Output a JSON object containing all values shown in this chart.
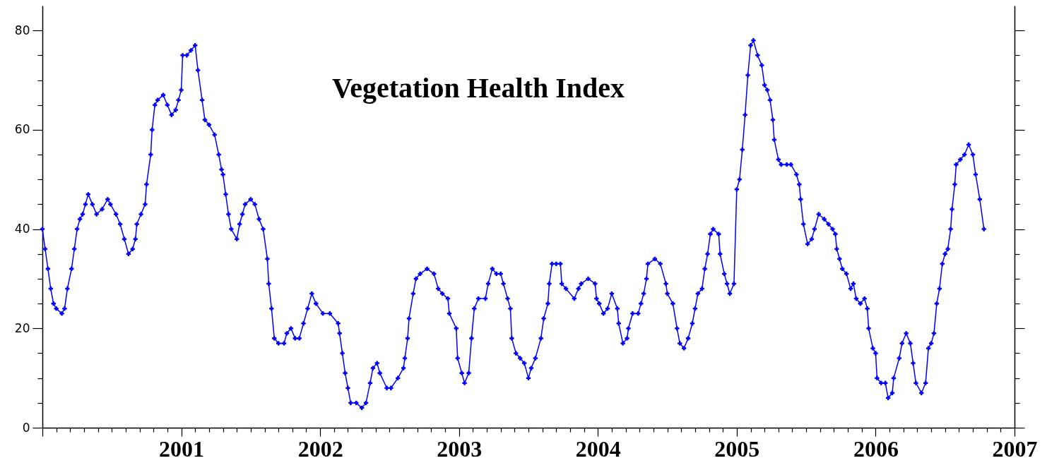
{
  "chart_data": {
    "type": "line",
    "title": "Vegetation Health Index",
    "x": [
      2000.0,
      2000.02,
      2000.04,
      2000.06,
      2000.08,
      2000.1,
      2000.14,
      2000.16,
      2000.18,
      2000.21,
      2000.23,
      2000.25,
      2000.27,
      2000.29,
      2000.31,
      2000.33,
      2000.36,
      2000.39,
      2000.43,
      2000.47,
      2000.49,
      2000.53,
      2000.56,
      2000.59,
      2000.62,
      2000.65,
      2000.67,
      2000.68,
      2000.71,
      2000.74,
      2000.75,
      2000.78,
      2000.79,
      2000.81,
      2000.83,
      2000.87,
      2000.9,
      2000.93,
      2000.96,
      2000.98,
      2001.0,
      2001.01,
      2001.04,
      2001.07,
      2001.1,
      2001.12,
      2001.15,
      2001.17,
      2001.2,
      2001.24,
      2001.27,
      2001.29,
      2001.3,
      2001.32,
      2001.34,
      2001.36,
      2001.4,
      2001.42,
      2001.44,
      2001.46,
      2001.5,
      2001.53,
      2001.56,
      2001.59,
      2001.62,
      2001.63,
      2001.65,
      2001.67,
      2001.7,
      2001.74,
      2001.76,
      2001.79,
      2001.82,
      2001.85,
      2001.88,
      2001.91,
      2001.94,
      2001.97,
      2002.02,
      2002.07,
      2002.13,
      2002.14,
      2002.16,
      2002.18,
      2002.2,
      2002.22,
      2002.26,
      2002.3,
      2002.33,
      2002.36,
      2002.38,
      2002.41,
      2002.43,
      2002.48,
      2002.51,
      2002.56,
      2002.6,
      2002.61,
      2002.63,
      2002.64,
      2002.67,
      2002.69,
      2002.72,
      2002.77,
      2002.82,
      2002.85,
      2002.88,
      2002.92,
      2002.93,
      2002.98,
      2002.99,
      2003.02,
      2003.04,
      2003.07,
      2003.09,
      2003.11,
      2003.14,
      2003.19,
      2003.21,
      2003.24,
      2003.27,
      2003.3,
      2003.32,
      2003.35,
      2003.37,
      2003.38,
      2003.41,
      2003.44,
      2003.47,
      2003.5,
      2003.52,
      2003.55,
      2003.59,
      2003.61,
      2003.64,
      2003.65,
      2003.67,
      2003.7,
      2003.73,
      2003.74,
      2003.77,
      2003.83,
      2003.86,
      2003.88,
      2003.93,
      2003.98,
      2003.99,
      2004.01,
      2004.04,
      2004.07,
      2004.1,
      2004.14,
      2004.15,
      2004.18,
      2004.21,
      2004.22,
      2004.25,
      2004.29,
      2004.31,
      2004.33,
      2004.35,
      2004.36,
      2004.41,
      2004.45,
      2004.49,
      2004.5,
      2004.54,
      2004.57,
      2004.59,
      2004.62,
      2004.65,
      2004.68,
      2004.7,
      2004.72,
      2004.75,
      2004.77,
      2004.79,
      2004.81,
      2004.83,
      2004.87,
      2004.88,
      2004.91,
      2004.93,
      2004.95,
      2004.98,
      2005.0,
      2005.02,
      2005.04,
      2005.06,
      2005.08,
      2005.1,
      2005.12,
      2005.15,
      2005.18,
      2005.2,
      2005.22,
      2005.24,
      2005.26,
      2005.27,
      2005.3,
      2005.32,
      2005.36,
      2005.39,
      2005.43,
      2005.45,
      2005.46,
      2005.48,
      2005.51,
      2005.54,
      2005.56,
      2005.59,
      2005.63,
      2005.66,
      2005.69,
      2005.71,
      2005.72,
      2005.74,
      2005.76,
      2005.79,
      2005.82,
      2005.84,
      2005.86,
      2005.89,
      2005.92,
      2005.94,
      2005.95,
      2005.98,
      2006.0,
      2006.01,
      2006.04,
      2006.07,
      2006.09,
      2006.12,
      2006.13,
      2006.17,
      2006.19,
      2006.22,
      2006.25,
      2006.27,
      2006.29,
      2006.33,
      2006.36,
      2006.38,
      2006.4,
      2006.42,
      2006.44,
      2006.46,
      2006.48,
      2006.5,
      2006.52,
      2006.54,
      2006.55,
      2006.57,
      2006.58,
      2006.61,
      2006.64,
      2006.67,
      2006.7,
      2006.72,
      2006.75,
      2006.78
    ],
    "series": [
      {
        "color": "#0000ff",
        "values": [
          40,
          36,
          32,
          28,
          25,
          24,
          23,
          24,
          28,
          32,
          36,
          40,
          42,
          43,
          45,
          47,
          45,
          43,
          44,
          46,
          45,
          43,
          41,
          38,
          35,
          36,
          38,
          41,
          43,
          45,
          49,
          55,
          60,
          65,
          66,
          67,
          65,
          63,
          64,
          66,
          68,
          75,
          75,
          76,
          77,
          72,
          66,
          62,
          61,
          59,
          55,
          52,
          51,
          47,
          43,
          40,
          38,
          41,
          43,
          45,
          46,
          45,
          42,
          40,
          34,
          29,
          24,
          18,
          17,
          17,
          19,
          20,
          18,
          18,
          21,
          24,
          27,
          25,
          23,
          23,
          21,
          19,
          15,
          11,
          8,
          5,
          5,
          4,
          5,
          9,
          12,
          13,
          11,
          8,
          8,
          10,
          12,
          14,
          18,
          22,
          27,
          30,
          31,
          32,
          31,
          28,
          27,
          26,
          23,
          20,
          14,
          11,
          9,
          11,
          18,
          24,
          26,
          26,
          29,
          32,
          31,
          31,
          29,
          26,
          24,
          18,
          15,
          14,
          13,
          10,
          12,
          14,
          18,
          22,
          25,
          29,
          33,
          33,
          33,
          29,
          28,
          26,
          28,
          29,
          30,
          29,
          26,
          25,
          23,
          24,
          27,
          24,
          21,
          17,
          18,
          20,
          23,
          23,
          25,
          27,
          30,
          33,
          34,
          33,
          29,
          27,
          25,
          20,
          17,
          16,
          18,
          21,
          24,
          27,
          28,
          32,
          35,
          39,
          40,
          39,
          35,
          31,
          29,
          27,
          29,
          48,
          50,
          56,
          63,
          71,
          77,
          78,
          75,
          73,
          69,
          68,
          66,
          62,
          58,
          54,
          53,
          53,
          53,
          51,
          49,
          46,
          41,
          37,
          38,
          40,
          43,
          42,
          41,
          40,
          39,
          36,
          34,
          32,
          31,
          28,
          29,
          26,
          25,
          26,
          24,
          20,
          16,
          15,
          10,
          9,
          9,
          6,
          7,
          10,
          14,
          17,
          19,
          17,
          13,
          9,
          7,
          9,
          16,
          17,
          19,
          25,
          28,
          33,
          35,
          36,
          40,
          44,
          49,
          53,
          54,
          55,
          57,
          55,
          51,
          46,
          40
        ]
      }
    ],
    "xlim": [
      2000,
      2007
    ],
    "xticks": [
      {
        "value": 2000,
        "label": null
      },
      {
        "value": 2000.1,
        "label": null
      },
      {
        "value": 2000.2,
        "label": null
      },
      {
        "value": 2000.3,
        "label": null
      },
      {
        "value": 2000.4,
        "label": null
      },
      {
        "value": 2000.5,
        "label": null
      },
      {
        "value": 2000.6,
        "label": null
      },
      {
        "value": 2000.7,
        "label": null
      },
      {
        "value": 2000.8,
        "label": null
      },
      {
        "value": 2000.9,
        "label": null
      },
      2001,
      {
        "value": 2001.1,
        "label": null
      },
      {
        "value": 2001.2,
        "label": null
      },
      {
        "value": 2001.3,
        "label": null
      },
      {
        "value": 2001.4,
        "label": null
      },
      {
        "value": 2001.5,
        "label": null
      },
      {
        "value": 2001.6,
        "label": null
      },
      {
        "value": 2001.7,
        "label": null
      },
      {
        "value": 2001.8,
        "label": null
      },
      {
        "value": 2001.9,
        "label": null
      },
      2002,
      {
        "value": 2002.1,
        "label": null
      },
      {
        "value": 2002.2,
        "label": null
      },
      {
        "value": 2002.3,
        "label": null
      },
      {
        "value": 2002.4,
        "label": null
      },
      {
        "value": 2002.5,
        "label": null
      },
      {
        "value": 2002.6,
        "label": null
      },
      {
        "value": 2002.7,
        "label": null
      },
      {
        "value": 2002.8,
        "label": null
      },
      {
        "value": 2002.9,
        "label": null
      },
      2003,
      {
        "value": 2003.1,
        "label": null
      },
      {
        "value": 2003.2,
        "label": null
      },
      {
        "value": 2003.3,
        "label": null
      },
      {
        "value": 2003.4,
        "label": null
      },
      {
        "value": 2003.5,
        "label": null
      },
      {
        "value": 2003.6,
        "label": null
      },
      {
        "value": 2003.7,
        "label": null
      },
      {
        "value": 2003.8,
        "label": null
      },
      {
        "value": 2003.9,
        "label": null
      },
      2004,
      {
        "value": 2004.1,
        "label": null
      },
      {
        "value": 2004.2,
        "label": null
      },
      {
        "value": 2004.3,
        "label": null
      },
      {
        "value": 2004.4,
        "label": null
      },
      {
        "value": 2004.5,
        "label": null
      },
      {
        "value": 2004.6,
        "label": null
      },
      {
        "value": 2004.7,
        "label": null
      },
      {
        "value": 2004.8,
        "label": null
      },
      {
        "value": 2004.9,
        "label": null
      },
      2005,
      {
        "value": 2005.1,
        "label": null
      },
      {
        "value": 2005.2,
        "label": null
      },
      {
        "value": 2005.3,
        "label": null
      },
      {
        "value": 2005.4,
        "label": null
      },
      {
        "value": 2005.5,
        "label": null
      },
      {
        "value": 2005.6,
        "label": null
      },
      {
        "value": 2005.7,
        "label": null
      },
      {
        "value": 2005.8,
        "label": null
      },
      {
        "value": 2005.9,
        "label": null
      },
      2006,
      {
        "value": 2006.1,
        "label": null
      },
      {
        "value": 2006.2,
        "label": null
      },
      {
        "value": 2006.3,
        "label": null
      },
      {
        "value": 2006.4,
        "label": null
      },
      {
        "value": 2006.5,
        "label": null
      },
      {
        "value": 2006.6,
        "label": null
      },
      {
        "value": 2006.7,
        "label": null
      },
      {
        "value": 2006.8,
        "label": null
      },
      {
        "value": 2006.9,
        "label": null
      },
      2007
    ],
    "ylim": [
      0,
      85
    ],
    "yticks": [
      0,
      {
        "value": 5,
        "label": null
      },
      {
        "value": 10,
        "label": null
      },
      {
        "value": 15,
        "label": null
      },
      20,
      {
        "value": 25,
        "label": null
      },
      {
        "value": 30,
        "label": null
      },
      {
        "value": 35,
        "label": null
      },
      40,
      {
        "value": 45,
        "label": null
      },
      {
        "value": 50,
        "label": null
      },
      {
        "value": 55,
        "label": null
      },
      60,
      {
        "value": 65,
        "label": null
      },
      {
        "value": 70,
        "label": null
      },
      {
        "value": 75,
        "label": null
      },
      80
    ],
    "marker": "cross",
    "line_style": "solid",
    "grid": false
  }
}
